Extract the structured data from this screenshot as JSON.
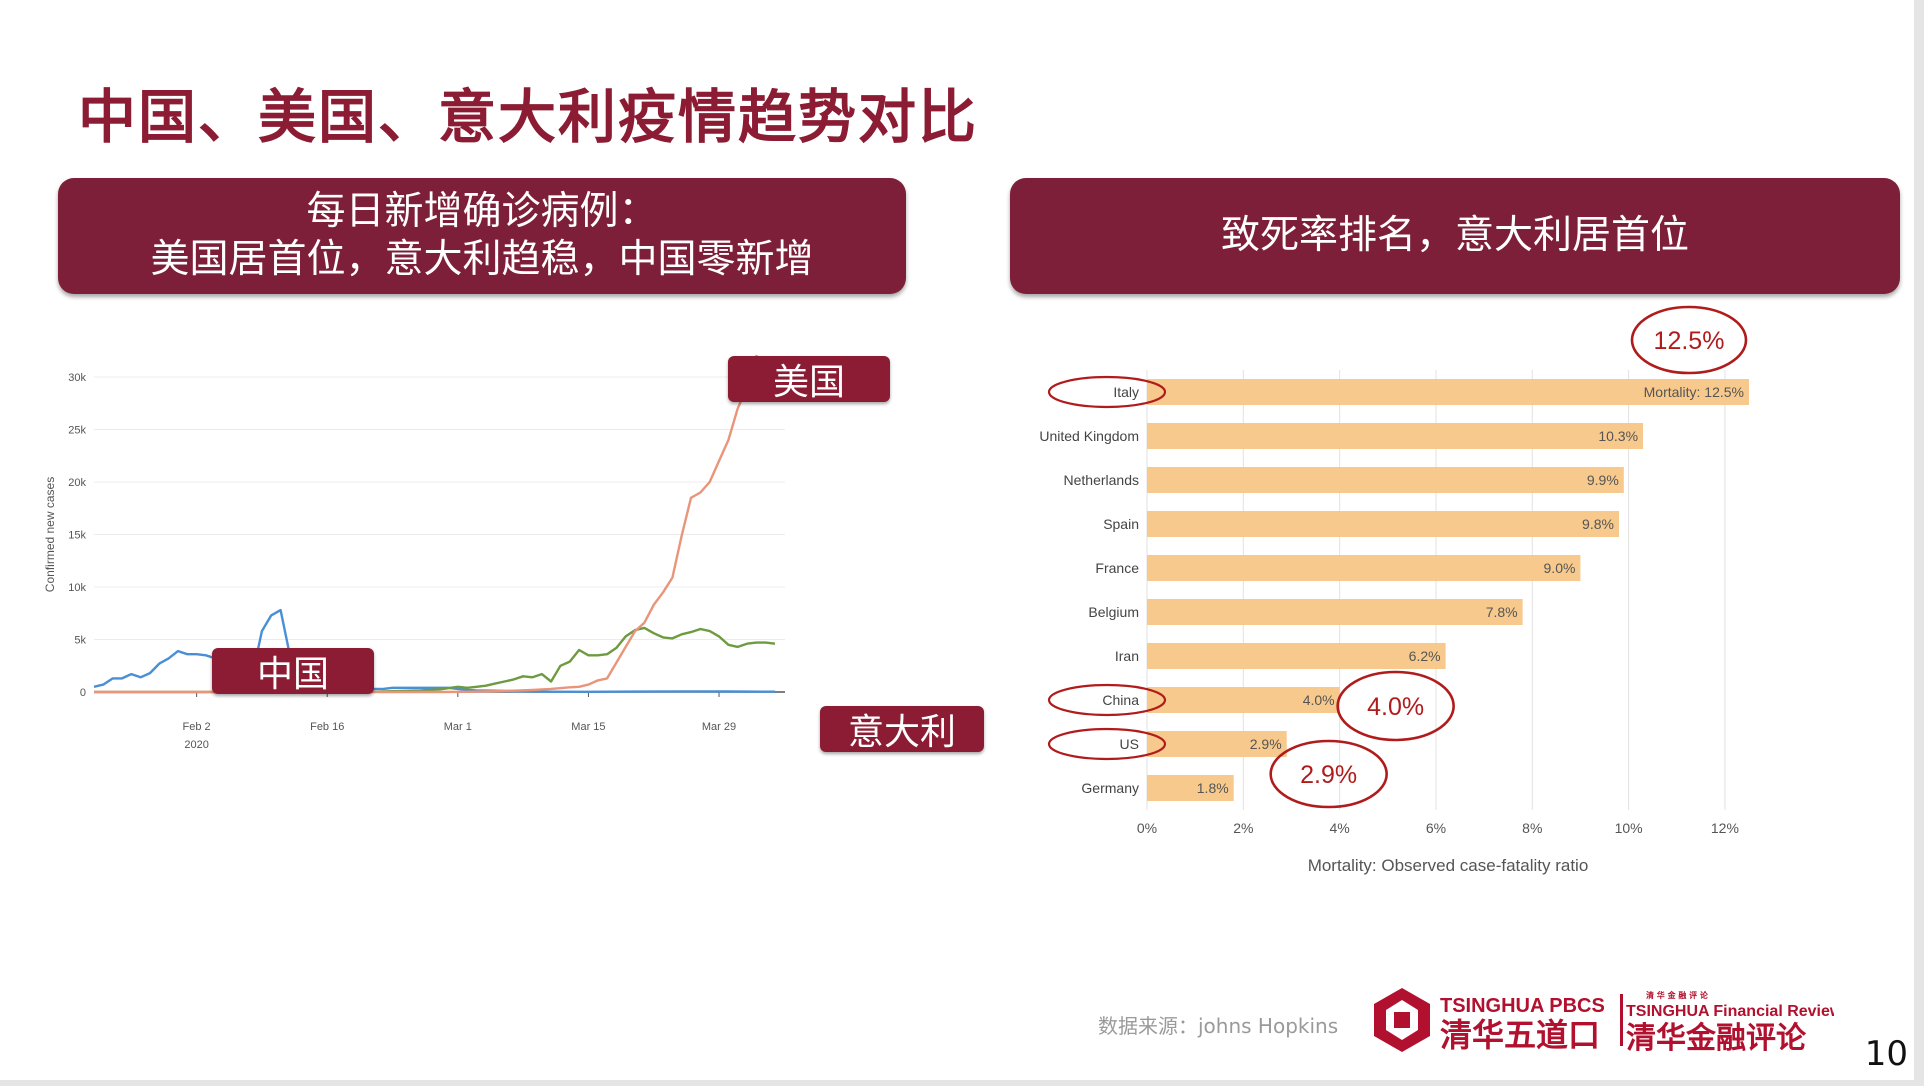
{
  "slide": {
    "title": "中国、美国、意大利疫情趋势对比",
    "left_banner_line1": "每日新增确诊病例：",
    "left_banner_line2": "美国居首位，意大利趋稳，中国零新增",
    "right_banner": "致死率排名，意大利居首位",
    "tag_us": "美国",
    "tag_cn": "中国",
    "tag_it": "意大利",
    "source": "数据来源：johns Hopkins",
    "logo_left_en": "TSINGHUA PBCSF",
    "logo_left_cn": "清华五道口",
    "logo_right_small": "清 华 金 融 评 论",
    "logo_right_en": "TSINGHUA Financial Review",
    "logo_right_cn": "清华金融评论",
    "page_number": "10",
    "accent_color": "#7d1f38"
  },
  "chart_data": [
    {
      "type": "line",
      "title": "",
      "xlabel": "",
      "ylabel": "Confirmed new cases",
      "x_start": "2020-01-22",
      "x_end": "2020-04-04",
      "x_ticks": [
        {
          "date": "2020-02-02",
          "label": "Feb 2",
          "sublabel": "2020"
        },
        {
          "date": "2020-02-16",
          "label": "Feb 16",
          "sublabel": ""
        },
        {
          "date": "2020-03-01",
          "label": "Mar 1",
          "sublabel": ""
        },
        {
          "date": "2020-03-15",
          "label": "Mar 15",
          "sublabel": ""
        },
        {
          "date": "2020-03-29",
          "label": "Mar 29",
          "sublabel": ""
        }
      ],
      "ylim": [
        0,
        30000
      ],
      "y_ticks": [
        {
          "value": 0,
          "label": "0"
        },
        {
          "value": 5000,
          "label": "5k"
        },
        {
          "value": 10000,
          "label": "10k"
        },
        {
          "value": 15000,
          "label": "15k"
        },
        {
          "value": 20000,
          "label": "20k"
        },
        {
          "value": 25000,
          "label": "25k"
        },
        {
          "value": 30000,
          "label": "30k"
        }
      ],
      "grid": true,
      "series": [
        {
          "color": "#4a8fd6",
          "points": [
            [
              "2020-01-22",
              500
            ],
            [
              "2020-01-23",
              700
            ],
            [
              "2020-01-24",
              1300
            ],
            [
              "2020-01-25",
              1300
            ],
            [
              "2020-01-26",
              1700
            ],
            [
              "2020-01-27",
              1400
            ],
            [
              "2020-01-28",
              1800
            ],
            [
              "2020-01-29",
              2700
            ],
            [
              "2020-01-30",
              3200
            ],
            [
              "2020-01-31",
              3900
            ],
            [
              "2020-02-01",
              3600
            ],
            [
              "2020-02-02",
              3600
            ],
            [
              "2020-02-03",
              3500
            ],
            [
              "2020-02-04",
              3200
            ],
            [
              "2020-02-05",
              3100
            ],
            [
              "2020-02-06",
              2700
            ],
            [
              "2020-02-07",
              2500
            ],
            [
              "2020-02-08",
              1700
            ],
            [
              "2020-02-09",
              5800
            ],
            [
              "2020-02-10",
              7300
            ],
            [
              "2020-02-11",
              7800
            ],
            [
              "2020-02-12",
              3500
            ],
            [
              "2020-02-13",
              2000
            ],
            [
              "2020-02-14",
              1900
            ],
            [
              "2020-02-15",
              1400
            ],
            [
              "2020-02-16",
              1000
            ],
            [
              "2020-02-17",
              500
            ],
            [
              "2020-02-18",
              800
            ],
            [
              "2020-02-19",
              700
            ],
            [
              "2020-02-20",
              600
            ],
            [
              "2020-02-21",
              300
            ],
            [
              "2020-02-22",
              300
            ],
            [
              "2020-02-23",
              400
            ],
            [
              "2020-02-24",
              400
            ],
            [
              "2020-02-25",
              400
            ],
            [
              "2020-02-26",
              400
            ],
            [
              "2020-02-27",
              400
            ],
            [
              "2020-02-28",
              400
            ],
            [
              "2020-02-29",
              400
            ],
            [
              "2020-03-01",
              300
            ],
            [
              "2020-03-02",
              200
            ],
            [
              "2020-03-03",
              150
            ],
            [
              "2020-03-04",
              130
            ],
            [
              "2020-03-05",
              120
            ],
            [
              "2020-03-06",
              100
            ],
            [
              "2020-03-08",
              60
            ],
            [
              "2020-03-10",
              30
            ],
            [
              "2020-03-15",
              20
            ],
            [
              "2020-03-20",
              40
            ],
            [
              "2020-03-25",
              60
            ],
            [
              "2020-03-30",
              50
            ],
            [
              "2020-04-04",
              30
            ]
          ]
        },
        {
          "color": "#6e9a40",
          "points": [
            [
              "2020-01-22",
              0
            ],
            [
              "2020-02-20",
              0
            ],
            [
              "2020-02-22",
              50
            ],
            [
              "2020-02-24",
              100
            ],
            [
              "2020-02-26",
              150
            ],
            [
              "2020-02-28",
              250
            ],
            [
              "2020-03-01",
              500
            ],
            [
              "2020-03-02",
              400
            ],
            [
              "2020-03-03",
              500
            ],
            [
              "2020-03-04",
              600
            ],
            [
              "2020-03-05",
              800
            ],
            [
              "2020-03-06",
              1000
            ],
            [
              "2020-03-07",
              1200
            ],
            [
              "2020-03-08",
              1500
            ],
            [
              "2020-03-09",
              1400
            ],
            [
              "2020-03-10",
              1700
            ],
            [
              "2020-03-11",
              1000
            ],
            [
              "2020-03-12",
              2500
            ],
            [
              "2020-03-13",
              2900
            ],
            [
              "2020-03-14",
              4000
            ],
            [
              "2020-03-15",
              3500
            ],
            [
              "2020-03-16",
              3500
            ],
            [
              "2020-03-17",
              3600
            ],
            [
              "2020-03-18",
              4200
            ],
            [
              "2020-03-19",
              5300
            ],
            [
              "2020-03-20",
              5900
            ],
            [
              "2020-03-21",
              6100
            ],
            [
              "2020-03-22",
              5600
            ],
            [
              "2020-03-23",
              5200
            ],
            [
              "2020-03-24",
              5100
            ],
            [
              "2020-03-25",
              5500
            ],
            [
              "2020-03-26",
              5700
            ],
            [
              "2020-03-27",
              6000
            ],
            [
              "2020-03-28",
              5800
            ],
            [
              "2020-03-29",
              5300
            ],
            [
              "2020-03-30",
              4500
            ],
            [
              "2020-03-31",
              4300
            ],
            [
              "2020-04-01",
              4600
            ],
            [
              "2020-04-02",
              4700
            ],
            [
              "2020-04-03",
              4700
            ],
            [
              "2020-04-04",
              4600
            ]
          ]
        },
        {
          "color": "#e8957a",
          "points": [
            [
              "2020-01-22",
              0
            ],
            [
              "2020-02-28",
              0
            ],
            [
              "2020-03-02",
              20
            ],
            [
              "2020-03-05",
              80
            ],
            [
              "2020-03-07",
              120
            ],
            [
              "2020-03-09",
              200
            ],
            [
              "2020-03-11",
              300
            ],
            [
              "2020-03-13",
              450
            ],
            [
              "2020-03-14",
              500
            ],
            [
              "2020-03-15",
              700
            ],
            [
              "2020-03-16",
              1100
            ],
            [
              "2020-03-17",
              1300
            ],
            [
              "2020-03-18",
              2800
            ],
            [
              "2020-03-19",
              4300
            ],
            [
              "2020-03-20",
              5800
            ],
            [
              "2020-03-21",
              6600
            ],
            [
              "2020-03-22",
              8300
            ],
            [
              "2020-03-23",
              9500
            ],
            [
              "2020-03-24",
              10900
            ],
            [
              "2020-03-25",
              14900
            ],
            [
              "2020-03-26",
              18500
            ],
            [
              "2020-03-27",
              19000
            ],
            [
              "2020-03-28",
              20000
            ],
            [
              "2020-03-29",
              22000
            ],
            [
              "2020-03-30",
              24000
            ],
            [
              "2020-03-31",
              27000
            ],
            [
              "2020-04-01",
              29000
            ],
            [
              "2020-04-02",
              32000
            ],
            [
              "2020-04-03",
              31500
            ]
          ]
        }
      ]
    },
    {
      "type": "bar",
      "orientation": "horizontal",
      "title": "",
      "xlabel": "Mortality: Observed case-fatality ratio",
      "ylabel": "",
      "xlim": [
        0,
        12.5
      ],
      "x_ticks": [
        {
          "value": 0,
          "label": "0%"
        },
        {
          "value": 2,
          "label": "2%"
        },
        {
          "value": 4,
          "label": "4%"
        },
        {
          "value": 6,
          "label": "6%"
        },
        {
          "value": 8,
          "label": "8%"
        },
        {
          "value": 10,
          "label": "10%"
        },
        {
          "value": 12,
          "label": "12%"
        }
      ],
      "grid": true,
      "bar_color": "#f7c98c",
      "categories": [
        "Italy",
        "United Kingdom",
        "Netherlands",
        "Spain",
        "France",
        "Belgium",
        "Iran",
        "China",
        "US",
        "Germany"
      ],
      "values": [
        12.5,
        10.3,
        9.9,
        9.8,
        9.0,
        7.8,
        6.2,
        4.0,
        2.9,
        1.8
      ],
      "value_labels": [
        "Mortality: 12.5%",
        "10.3%",
        "9.9%",
        "9.8%",
        "9.0%",
        "7.8%",
        "6.2%",
        "4.0%",
        "2.9%",
        "1.8%"
      ],
      "highlighted": [
        "Italy",
        "China",
        "US"
      ],
      "callouts": [
        {
          "category": "Italy",
          "text": "12.5%"
        },
        {
          "category": "China",
          "text": "4.0%"
        },
        {
          "category": "US",
          "text": "2.9%"
        }
      ],
      "highlight_color": "#b01c1c"
    }
  ]
}
